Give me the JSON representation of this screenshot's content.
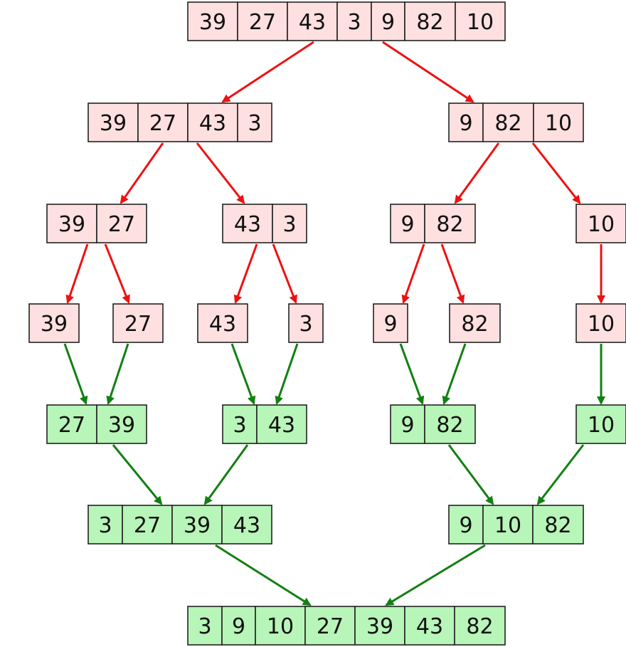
{
  "colors": {
    "split_fill": "#ffe0e0",
    "merge_fill": "#b8f5b8",
    "border": "#222222",
    "split_arrow": "#ee1111",
    "merge_arrow": "#118011",
    "text": "#111111"
  },
  "arrays": [
    {
      "id": "a0",
      "kind": "split",
      "values": [
        "39",
        "27",
        "43",
        "3",
        "9",
        "82",
        "10"
      ]
    },
    {
      "id": "a1",
      "kind": "split",
      "values": [
        "39",
        "27",
        "43",
        "3"
      ]
    },
    {
      "id": "a2",
      "kind": "split",
      "values": [
        "9",
        "82",
        "10"
      ]
    },
    {
      "id": "a3",
      "kind": "split",
      "values": [
        "39",
        "27"
      ]
    },
    {
      "id": "a4",
      "kind": "split",
      "values": [
        "43",
        "3"
      ]
    },
    {
      "id": "a5",
      "kind": "split",
      "values": [
        "9",
        "82"
      ]
    },
    {
      "id": "a6",
      "kind": "split",
      "values": [
        "10"
      ]
    },
    {
      "id": "a7",
      "kind": "split",
      "values": [
        "39"
      ]
    },
    {
      "id": "a8",
      "kind": "split",
      "values": [
        "27"
      ]
    },
    {
      "id": "a9",
      "kind": "split",
      "values": [
        "43"
      ]
    },
    {
      "id": "a10",
      "kind": "split",
      "values": [
        "3"
      ]
    },
    {
      "id": "a11",
      "kind": "split",
      "values": [
        "9"
      ]
    },
    {
      "id": "a12",
      "kind": "split",
      "values": [
        "82"
      ]
    },
    {
      "id": "a13",
      "kind": "split",
      "values": [
        "10"
      ]
    },
    {
      "id": "a14",
      "kind": "merge",
      "values": [
        "27",
        "39"
      ]
    },
    {
      "id": "a15",
      "kind": "merge",
      "values": [
        "3",
        "43"
      ]
    },
    {
      "id": "a16",
      "kind": "merge",
      "values": [
        "9",
        "82"
      ]
    },
    {
      "id": "a17",
      "kind": "merge",
      "values": [
        "10"
      ]
    },
    {
      "id": "a18",
      "kind": "merge",
      "values": [
        "3",
        "27",
        "39",
        "43"
      ]
    },
    {
      "id": "a19",
      "kind": "merge",
      "values": [
        "9",
        "10",
        "82"
      ]
    },
    {
      "id": "a20",
      "kind": "merge",
      "values": [
        "3",
        "9",
        "10",
        "27",
        "39",
        "43",
        "82"
      ]
    }
  ],
  "edges": [
    {
      "from": "a0",
      "to": "a1",
      "kind": "split"
    },
    {
      "from": "a0",
      "to": "a2",
      "kind": "split"
    },
    {
      "from": "a1",
      "to": "a3",
      "kind": "split"
    },
    {
      "from": "a1",
      "to": "a4",
      "kind": "split"
    },
    {
      "from": "a2",
      "to": "a5",
      "kind": "split"
    },
    {
      "from": "a2",
      "to": "a6",
      "kind": "split"
    },
    {
      "from": "a3",
      "to": "a7",
      "kind": "split"
    },
    {
      "from": "a3",
      "to": "a8",
      "kind": "split"
    },
    {
      "from": "a4",
      "to": "a9",
      "kind": "split"
    },
    {
      "from": "a4",
      "to": "a10",
      "kind": "split"
    },
    {
      "from": "a5",
      "to": "a11",
      "kind": "split"
    },
    {
      "from": "a5",
      "to": "a12",
      "kind": "split"
    },
    {
      "from": "a6",
      "to": "a13",
      "kind": "split"
    },
    {
      "from": "a7",
      "to": "a14",
      "kind": "merge"
    },
    {
      "from": "a8",
      "to": "a14",
      "kind": "merge"
    },
    {
      "from": "a9",
      "to": "a15",
      "kind": "merge"
    },
    {
      "from": "a10",
      "to": "a15",
      "kind": "merge"
    },
    {
      "from": "a11",
      "to": "a16",
      "kind": "merge"
    },
    {
      "from": "a12",
      "to": "a16",
      "kind": "merge"
    },
    {
      "from": "a13",
      "to": "a17",
      "kind": "merge"
    },
    {
      "from": "a14",
      "to": "a18",
      "kind": "merge"
    },
    {
      "from": "a15",
      "to": "a18",
      "kind": "merge"
    },
    {
      "from": "a16",
      "to": "a19",
      "kind": "merge"
    },
    {
      "from": "a17",
      "to": "a19",
      "kind": "merge"
    },
    {
      "from": "a18",
      "to": "a20",
      "kind": "merge"
    },
    {
      "from": "a19",
      "to": "a20",
      "kind": "merge"
    }
  ]
}
